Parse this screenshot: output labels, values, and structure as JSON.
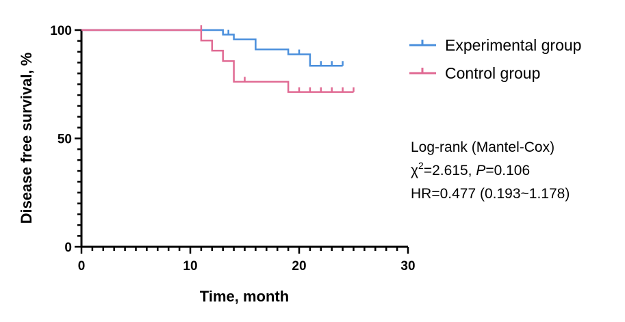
{
  "chart_data": {
    "type": "line",
    "xlabel": "Time, month",
    "ylabel": "Disease free survival, %",
    "xlim": [
      0,
      30
    ],
    "ylim": [
      0,
      100
    ],
    "xticks": [
      0,
      10,
      20,
      30
    ],
    "yticks": [
      0,
      50,
      100
    ],
    "legend_position": "top-right",
    "series": [
      {
        "name": "Experimental group",
        "color": "#4a8fdc",
        "steps": [
          [
            0,
            100
          ],
          [
            13,
            97.9
          ],
          [
            14,
            95.7
          ],
          [
            16,
            91.1
          ],
          [
            19,
            88.8
          ],
          [
            21,
            83.5
          ],
          [
            24,
            83.5
          ]
        ],
        "censored": [
          [
            13.5,
            97.9
          ],
          [
            20,
            88.8
          ],
          [
            22,
            83.5
          ],
          [
            23,
            83.5
          ],
          [
            24,
            83.5
          ]
        ]
      },
      {
        "name": "Control group",
        "color": "#e06a93",
        "steps": [
          [
            0,
            100
          ],
          [
            11,
            95.2
          ],
          [
            12,
            90.5
          ],
          [
            13,
            85.7
          ],
          [
            14,
            76.2
          ],
          [
            19,
            71.4
          ],
          [
            25,
            71.4
          ]
        ],
        "censored": [
          [
            11,
            100
          ],
          [
            15,
            76.2
          ],
          [
            20,
            71.4
          ],
          [
            21,
            71.4
          ],
          [
            22,
            71.4
          ],
          [
            23,
            71.4
          ],
          [
            24,
            71.4
          ],
          [
            25,
            71.4
          ]
        ]
      }
    ],
    "annotation": {
      "line1": "Log-rank (Mantel-Cox)",
      "line2_chi": "χ",
      "line2_sup": "2",
      "line2_rest1": "=2.615, ",
      "line2_p": "P",
      "line2_rest2": "=0.106",
      "line3": "HR=0.477 (0.193~1.178)"
    }
  }
}
